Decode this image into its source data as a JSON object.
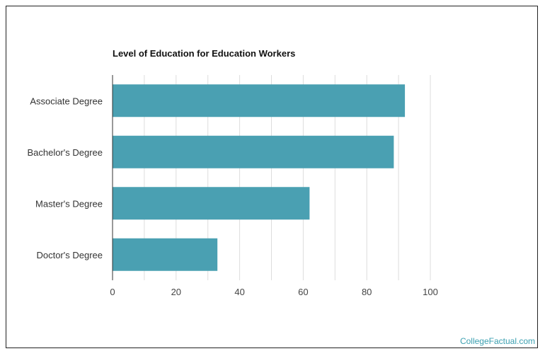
{
  "chart_data": {
    "type": "bar",
    "orientation": "horizontal",
    "title": "Level of Education for Education Workers",
    "categories": [
      "Associate Degree",
      "Bachelor's Degree",
      "Master's Degree",
      "Doctor's Degree"
    ],
    "values": [
      92,
      88.5,
      62,
      33
    ],
    "xlabel": "",
    "ylabel": "",
    "xlim": [
      0,
      100
    ],
    "xticks": [
      0,
      20,
      40,
      60,
      80,
      100
    ],
    "xtick_labels": [
      "0",
      "20",
      "40",
      "60",
      "80",
      "100"
    ],
    "grid": true,
    "bar_color": "#4aa0b2",
    "grid_color": "#dddddd"
  },
  "watermark": "CollegeFactual.com"
}
